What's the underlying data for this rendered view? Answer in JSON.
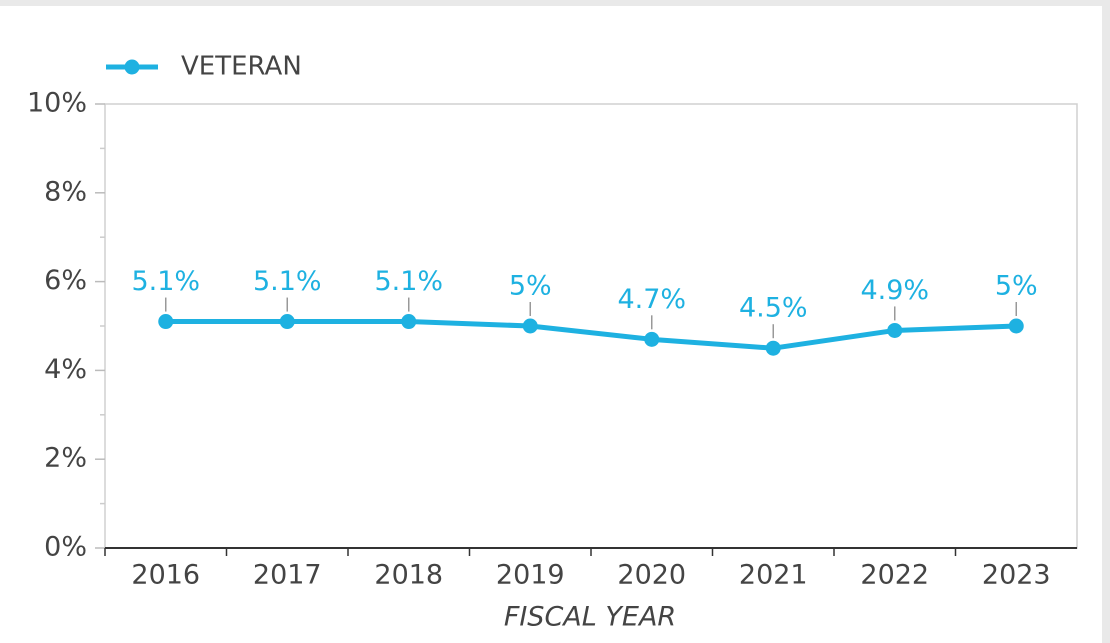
{
  "chart_data": {
    "type": "line",
    "categories": [
      "2016",
      "2017",
      "2018",
      "2019",
      "2020",
      "2021",
      "2022",
      "2023"
    ],
    "series": [
      {
        "name": "VETERAN",
        "color": "#1eb1e1",
        "values": [
          5.1,
          5.1,
          5.1,
          5,
          4.7,
          4.5,
          4.9,
          5
        ],
        "value_labels": [
          "5.1%",
          "5.1%",
          "5.1%",
          "5%",
          "4.7%",
          "4.5%",
          "4.9%",
          "5%"
        ]
      }
    ],
    "ylim": [
      0,
      10
    ],
    "yticks": [
      {
        "value": 0,
        "label": "0%"
      },
      {
        "value": 2,
        "label": "2%"
      },
      {
        "value": 4,
        "label": "4%"
      },
      {
        "value": 6,
        "label": "6%"
      },
      {
        "value": 8,
        "label": "8%"
      },
      {
        "value": 10,
        "label": "10%"
      }
    ],
    "x_label": "FISCAL YEAR",
    "legend": "top-left",
    "grid": false
  }
}
